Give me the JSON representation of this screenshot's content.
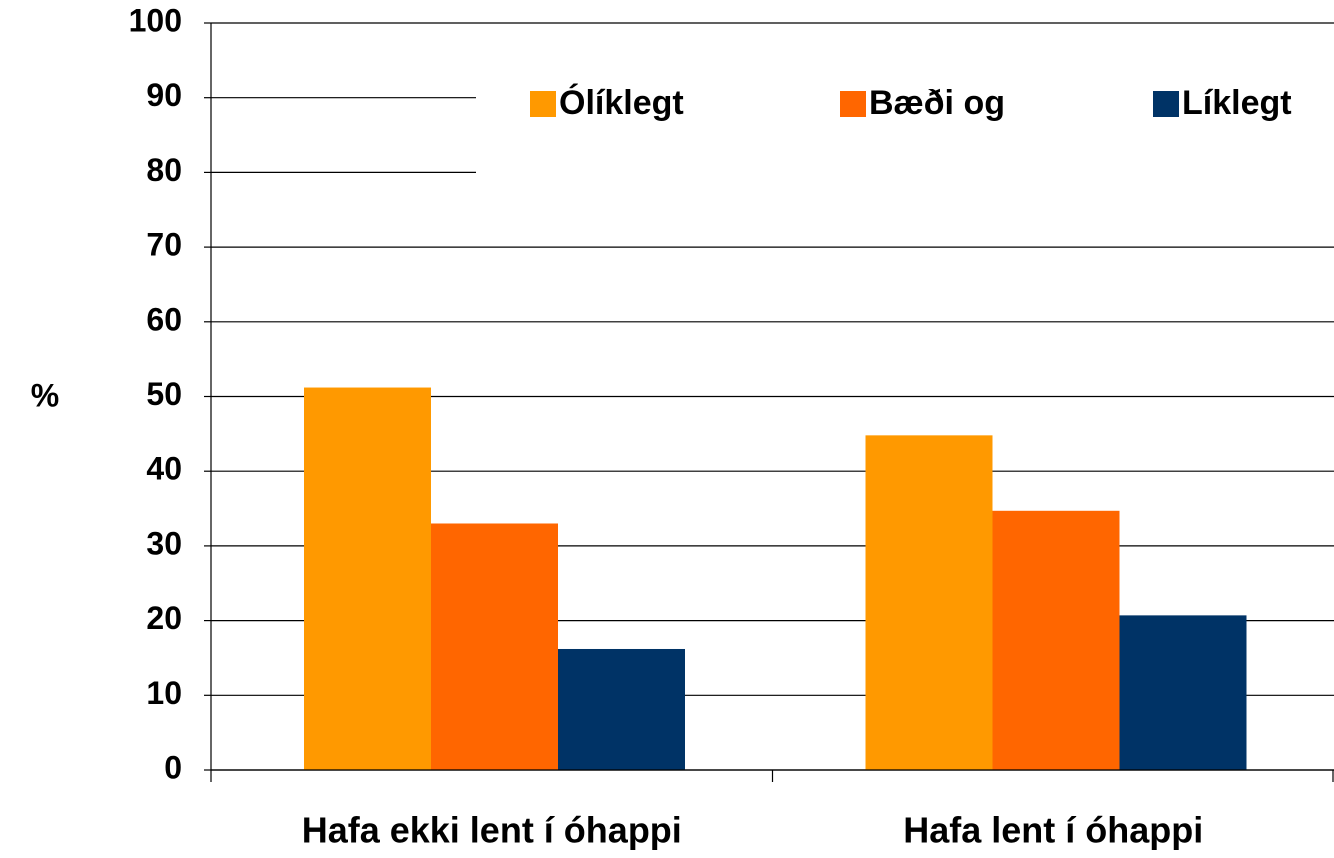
{
  "chart_data": {
    "type": "bar",
    "y_label": "%",
    "categories": [
      "Hafa ekki lent í óhappi",
      "Hafa lent í óhappi"
    ],
    "series": [
      {
        "name": "Ólíklegt",
        "color": "#FF9900",
        "values": [
          51.2,
          44.8
        ]
      },
      {
        "name": "Bæði og",
        "color": "#FF6600",
        "values": [
          33,
          34.7
        ]
      },
      {
        "name": "Líklegt",
        "color": "#003366",
        "values": [
          16.2,
          20.7
        ]
      }
    ],
    "ylim": [
      0,
      100
    ],
    "yticks": [
      0,
      10,
      20,
      30,
      40,
      50,
      60,
      70,
      80,
      90,
      100
    ],
    "grid": true,
    "legend": "top-right"
  }
}
